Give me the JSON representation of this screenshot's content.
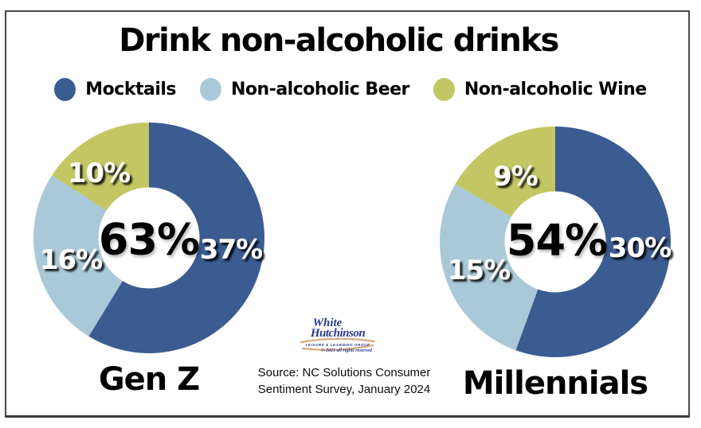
{
  "title": "Drink non-alcoholic drinks",
  "legend": [
    {
      "label": "Mocktails",
      "color": "#3b5c90"
    },
    {
      "label": "Non-alcoholic Beer",
      "color": "#a9c8d8"
    },
    {
      "label": "Non-alcoholic Wine",
      "color": "#c2c763"
    }
  ],
  "chart_data": [
    {
      "type": "pie",
      "variant": "donut",
      "group": "Gen Z",
      "center_total_label": "63%",
      "categories": [
        "Mocktails",
        "Non-alcoholic Beer",
        "Non-alcoholic Wine"
      ],
      "values": [
        37,
        16,
        10
      ],
      "slice_labels": [
        "37%",
        "16%",
        "10%"
      ],
      "colors": [
        "#3b5c90",
        "#a9c8d8",
        "#c2c763"
      ],
      "start_angle": "top",
      "direction": "clockwise"
    },
    {
      "type": "pie",
      "variant": "donut",
      "group": "Millennials",
      "center_total_label": "54%",
      "categories": [
        "Mocktails",
        "Non-alcoholic Beer",
        "Non-alcoholic Wine"
      ],
      "values": [
        30,
        15,
        9
      ],
      "slice_labels": [
        "30%",
        "15%",
        "9%"
      ],
      "colors": [
        "#3b5c90",
        "#a9c8d8",
        "#c2c763"
      ],
      "start_angle": "top",
      "direction": "clockwise"
    }
  ],
  "logo": {
    "line1": "White",
    "line2": "Hutchinson",
    "subtext": "LEISURE & LEARNING GROUP",
    "copyright": "© 2021 all rights reserved",
    "text_color": "#2a3b8f",
    "swoosh_color": "#d9a87c"
  },
  "source": {
    "line1": "Source: NC Solutions Consumer",
    "line2": "Sentiment Survey, January 2024"
  }
}
